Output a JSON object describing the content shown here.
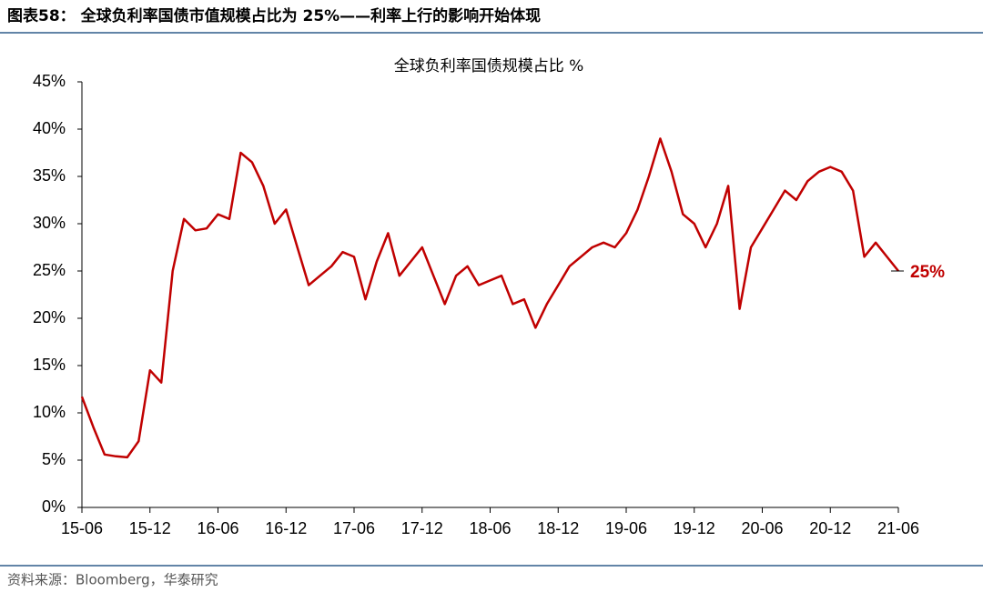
{
  "header": "图表58： 全球负利率国债市值规模占比为 25%——利率上行的影响开始体现",
  "source": "资料来源：Bloomberg，华泰研究",
  "chart_data": {
    "type": "line",
    "title": "全球负利率国债规模占比 %",
    "x": [
      "15-06",
      null,
      null,
      null,
      null,
      null,
      "15-12",
      null,
      null,
      null,
      null,
      null,
      "16-06",
      null,
      null,
      null,
      null,
      null,
      "16-12",
      null,
      null,
      null,
      null,
      null,
      "17-06",
      null,
      null,
      null,
      null,
      null,
      "17-12",
      null,
      null,
      null,
      null,
      null,
      "18-06",
      null,
      null,
      null,
      null,
      null,
      "18-12",
      null,
      null,
      null,
      null,
      null,
      "19-06",
      null,
      null,
      null,
      null,
      null,
      "19-12",
      null,
      null,
      null,
      null,
      null,
      "20-06",
      null,
      null,
      null,
      null,
      null,
      "20-12",
      null,
      null,
      null,
      null,
      null,
      "21-06"
    ],
    "series": [
      {
        "name": "全球负利率国债规模占比",
        "color": "#c00000",
        "values": [
          11.7,
          8.5,
          5.6,
          5.4,
          5.3,
          7.0,
          14.5,
          13.2,
          25.0,
          30.5,
          29.3,
          29.5,
          31.0,
          30.5,
          37.5,
          36.5,
          34.0,
          30.0,
          31.5,
          27.5,
          23.5,
          24.5,
          25.5,
          27.0,
          26.5,
          22.0,
          26.0,
          29.0,
          24.5,
          26.0,
          27.5,
          24.5,
          21.5,
          24.5,
          25.5,
          23.5,
          24.0,
          24.5,
          21.5,
          22.0,
          19.0,
          21.5,
          23.5,
          25.5,
          26.5,
          27.5,
          28.0,
          27.5,
          29.0,
          31.5,
          35.0,
          39.0,
          35.5,
          31.0,
          30.0,
          27.5,
          30.0,
          34.0,
          21.0,
          27.5,
          29.5,
          31.5,
          33.5,
          32.5,
          34.5,
          35.5,
          36.0,
          35.5,
          33.5,
          26.5,
          28.0,
          26.5,
          25.0
        ]
      }
    ],
    "annotation": "25%",
    "ylim": [
      0,
      45
    ],
    "yticks": [
      {
        "value": 0,
        "label": "0%"
      },
      {
        "value": 5,
        "label": "5%"
      },
      {
        "value": 10,
        "label": "10%"
      },
      {
        "value": 15,
        "label": "15%"
      },
      {
        "value": 20,
        "label": "20%"
      },
      {
        "value": 25,
        "label": "25%"
      },
      {
        "value": 30,
        "label": "30%"
      },
      {
        "value": 35,
        "label": "35%"
      },
      {
        "value": 40,
        "label": "40%"
      },
      {
        "value": 45,
        "label": "45%"
      }
    ],
    "grid": false
  }
}
